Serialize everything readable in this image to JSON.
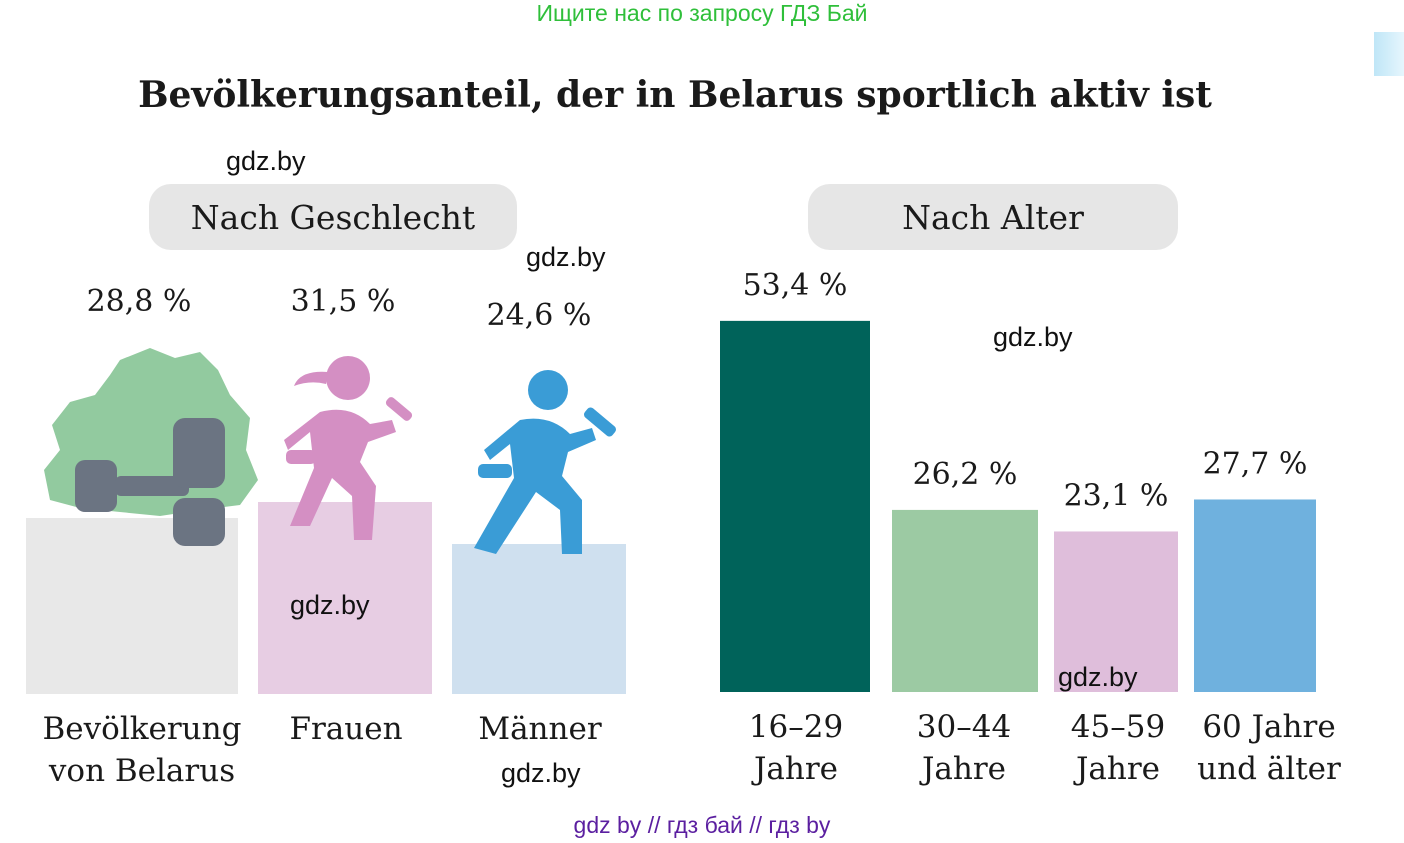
{
  "banner": "Ищите нас по запросу ГДЗ Бай",
  "title": "Bevölkerungsanteil, der in Belarus sportlich aktiv ist",
  "footer": "gdz by  //  гдз бай  //  гдз by",
  "watermark": "gdz.by",
  "colors": {
    "population": "#e8e8e8",
    "women": "#e7cde3",
    "men": "#cfe0ef",
    "age_16_29": "#00635a",
    "age_30_44": "#9ccaa3",
    "age_45_59": "#dfbedb",
    "age_60": "#6fb1de"
  },
  "icons": [
    "belarus-map-icon",
    "dumbbell-icon",
    "woman-running-icon",
    "man-running-icon"
  ],
  "chart_data": [
    {
      "type": "bar",
      "subtitle": "Nach Geschlecht",
      "categories": [
        "Bevölkerung\nvon Belarus",
        "Frauen",
        "Männer"
      ],
      "category_lines": [
        [
          "Bevölkerung",
          "von Belarus"
        ],
        [
          "Frauen"
        ],
        [
          "Männer"
        ]
      ],
      "values": [
        28.8,
        31.5,
        24.6
      ],
      "value_labels": [
        "28,8 %",
        "31,5 %",
        "24,6 %"
      ],
      "unit": "%"
    },
    {
      "type": "bar",
      "subtitle": "Nach Alter",
      "categories": [
        "16–29\nJahre",
        "30–44\nJahre",
        "45–59\nJahre",
        "60 Jahre\nund älter"
      ],
      "category_lines": [
        [
          "16–29",
          "Jahre"
        ],
        [
          "30–44",
          "Jahre"
        ],
        [
          "45–59",
          "Jahre"
        ],
        [
          "60 Jahre",
          "und älter"
        ]
      ],
      "values": [
        53.4,
        26.2,
        23.1,
        27.7
      ],
      "value_labels": [
        "53,4 %",
        "26,2 %",
        "23,1 %",
        "27,7 %"
      ],
      "unit": "%"
    }
  ]
}
